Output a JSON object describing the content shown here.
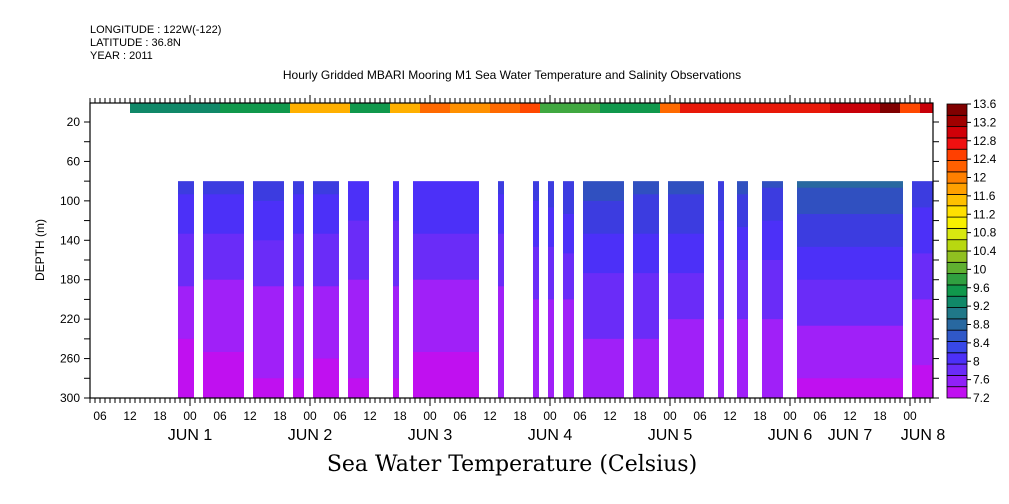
{
  "header": {
    "longitude": "LONGITUDE : 122W(-122)",
    "latitude": "LATITUDE : 36.8N",
    "year": "YEAR : 2011"
  },
  "chart_data": {
    "type": "heatmap",
    "title": "Hourly Gridded MBARI Mooring M1 Sea Water Temperature and Salinity Observations",
    "xlabel": "Sea Water Temperature (Celsius)",
    "ylabel": "DEPTH (m)",
    "x_range_hours": [
      0,
      168.6
    ],
    "x_start": "JUN 1 04:00",
    "y_range": [
      1,
      300
    ],
    "y_inverted": true,
    "y_ticks": [
      20,
      60,
      100,
      140,
      180,
      220,
      260,
      300
    ],
    "x_hour_labels": [
      "06",
      "12",
      "18",
      "00",
      "06",
      "12",
      "18",
      "00",
      "06",
      "12",
      "18",
      "00",
      "06",
      "12",
      "18",
      "00",
      "06",
      "12",
      "18",
      "00",
      "06",
      "12",
      "18",
      "00",
      "06",
      "12",
      "18",
      "00",
      "06",
      "12",
      "18",
      "00"
    ],
    "x_day_labels": [
      {
        "label": "JUN  1",
        "hour": 20
      },
      {
        "label": "JUN  2",
        "hour": 44
      },
      {
        "label": "JUN  3",
        "hour": 68
      },
      {
        "label": "JUN  4",
        "hour": 92
      },
      {
        "label": "JUN  5",
        "hour": 116
      },
      {
        "label": "JUN  6",
        "hour": 140
      },
      {
        "label": "JUN  7",
        "hour": 164
      },
      {
        "label": "JUN  8",
        "hour": 165.5
      }
    ],
    "colorbar": {
      "levels": [
        7.2,
        7.6,
        8,
        8.4,
        8.8,
        9.2,
        9.6,
        10,
        10.4,
        10.8,
        11.2,
        11.6,
        12,
        12.4,
        12.8,
        13.2,
        13.6
      ],
      "colors": [
        "#c010f0",
        "#a020f8",
        "#7828f8",
        "#4c30f8",
        "#3c3ce0",
        "#3050c0",
        "#2860a8",
        "#207090",
        "#108070",
        "#10904c",
        "#20a040",
        "#50b030",
        "#80c020",
        "#b0d010",
        "#e8f010",
        "#ffe000",
        "#ffc000",
        "#ff9000",
        "#ff6800",
        "#ff4000",
        "#e81010",
        "#c80008",
        "#a00000",
        "#800000"
      ],
      "labels": [
        "7.2",
        "7.6",
        "8",
        "8.4",
        "8.8",
        "9.2",
        "9.6",
        "10",
        "10.4",
        "10.8",
        "11.2",
        "11.6",
        "12",
        "12.4",
        "12.8",
        "13.2",
        "13.6"
      ]
    },
    "surface_layer": {
      "depth_range": [
        1,
        11
      ],
      "start_hour": 8,
      "end_hour": 168.6,
      "segments": [
        {
          "h0": 8,
          "h1": 26,
          "temp": 10.5
        },
        {
          "h0": 26,
          "h1": 40,
          "temp": 11.0
        },
        {
          "h0": 40,
          "h1": 52,
          "temp": 11.6
        },
        {
          "h0": 52,
          "h1": 60,
          "temp": 11.2
        },
        {
          "h0": 60,
          "h1": 66,
          "temp": 11.6
        },
        {
          "h0": 66,
          "h1": 72,
          "temp": 12.3
        },
        {
          "h0": 72,
          "h1": 80,
          "temp": 11.9
        },
        {
          "h0": 80,
          "h1": 86,
          "temp": 12.1
        },
        {
          "h0": 86,
          "h1": 90,
          "temp": 12.4
        },
        {
          "h0": 90,
          "h1": 102,
          "temp": 11.5
        },
        {
          "h0": 102,
          "h1": 114,
          "temp": 11.2
        },
        {
          "h0": 114,
          "h1": 118,
          "temp": 12.3
        },
        {
          "h0": 118,
          "h1": 144,
          "temp": 12.6
        },
        {
          "h0": 144,
          "h1": 148,
          "temp": 12.7
        },
        {
          "h0": 148,
          "h1": 158,
          "temp": 12.9
        },
        {
          "h0": 158,
          "h1": 162,
          "temp": 13.4
        },
        {
          "h0": 162,
          "h1": 166,
          "temp": 12.4
        },
        {
          "h0": 166,
          "h1": 168.6,
          "temp": 12.9
        }
      ]
    },
    "deep_layer": {
      "depth_range": [
        80,
        300
      ],
      "profile_depths": [
        80,
        120,
        160,
        200,
        240,
        280,
        300
      ],
      "segments": [
        {
          "h0": 17.6,
          "h1": 20.8,
          "profile": [
            8.9,
            8.5,
            8.2,
            7.9,
            7.6,
            7.3,
            7.3
          ]
        },
        {
          "h0": 22.6,
          "h1": 30.8,
          "profile": [
            8.9,
            8.6,
            8.1,
            7.9,
            7.7,
            7.4,
            7.3
          ]
        },
        {
          "h0": 32.6,
          "h1": 38.8,
          "profile": [
            9.0,
            8.6,
            8.2,
            7.9,
            7.8,
            7.6,
            7.5
          ]
        },
        {
          "h0": 40.6,
          "h1": 42.8,
          "profile": [
            8.9,
            8.5,
            8.2,
            7.9,
            7.7,
            7.6,
            7.5
          ]
        },
        {
          "h0": 44.6,
          "h1": 49.8,
          "profile": [
            8.9,
            8.5,
            8.2,
            7.9,
            7.7,
            7.5,
            7.3
          ]
        },
        {
          "h0": 51.6,
          "h1": 55.8,
          "profile": [
            8.7,
            8.4,
            8.1,
            7.9,
            7.8,
            7.6,
            7.5
          ]
        },
        {
          "h0": 60.6,
          "h1": 61.8,
          "profile": [
            8.8,
            8.4,
            8.2,
            7.9,
            7.8,
            7.6,
            7.6
          ]
        },
        {
          "h0": 64.6,
          "h1": 77.8,
          "profile": [
            8.8,
            8.5,
            8.1,
            7.9,
            7.7,
            7.4,
            7.3
          ]
        },
        {
          "h0": 81.6,
          "h1": 82.8,
          "profile": [
            8.9,
            8.5,
            8.2,
            7.9,
            7.9,
            7.8,
            7.8
          ]
        },
        {
          "h0": 88.6,
          "h1": 89.8,
          "profile": [
            9.0,
            8.6,
            8.3,
            8.0,
            7.9,
            7.8,
            7.8
          ]
        },
        {
          "h0": 91.6,
          "h1": 92.8,
          "profile": [
            9.1,
            8.6,
            8.3,
            8.0,
            7.9,
            7.8,
            7.8
          ]
        },
        {
          "h0": 94.6,
          "h1": 96.8,
          "profile": [
            9.2,
            8.7,
            8.3,
            8.0,
            7.9,
            7.8,
            7.7
          ]
        },
        {
          "h0": 98.6,
          "h1": 106.8,
          "profile": [
            9.4,
            9.0,
            8.5,
            8.2,
            8.0,
            7.9,
            7.8
          ]
        },
        {
          "h0": 108.6,
          "h1": 113.8,
          "profile": [
            9.3,
            8.9,
            8.5,
            8.2,
            8.0,
            7.9,
            7.7
          ]
        },
        {
          "h0": 115.6,
          "h1": 122.8,
          "profile": [
            9.3,
            8.9,
            8.5,
            8.1,
            7.9,
            7.7,
            7.6
          ]
        },
        {
          "h0": 125.6,
          "h1": 126.8,
          "profile": [
            9.2,
            8.8,
            8.4,
            8.1,
            7.9,
            7.8,
            7.8
          ]
        },
        {
          "h0": 129.4,
          "h1": 131.6,
          "profile": [
            9.4,
            8.9,
            8.4,
            8.1,
            7.9,
            7.8,
            7.8
          ]
        },
        {
          "h0": 134.4,
          "h1": 138.6,
          "profile": [
            9.3,
            8.8,
            8.4,
            8.1,
            7.9,
            7.7,
            7.6
          ]
        },
        {
          "h0": 141.4,
          "h1": 162.6,
          "profile": [
            9.7,
            9.1,
            8.6,
            8.2,
            7.9,
            7.6,
            7.4
          ]
        },
        {
          "h0": 164.4,
          "h1": 168.6,
          "profile": [
            9.1,
            8.7,
            8.3,
            8.0,
            7.8,
            7.5,
            7.3
          ]
        }
      ]
    }
  }
}
